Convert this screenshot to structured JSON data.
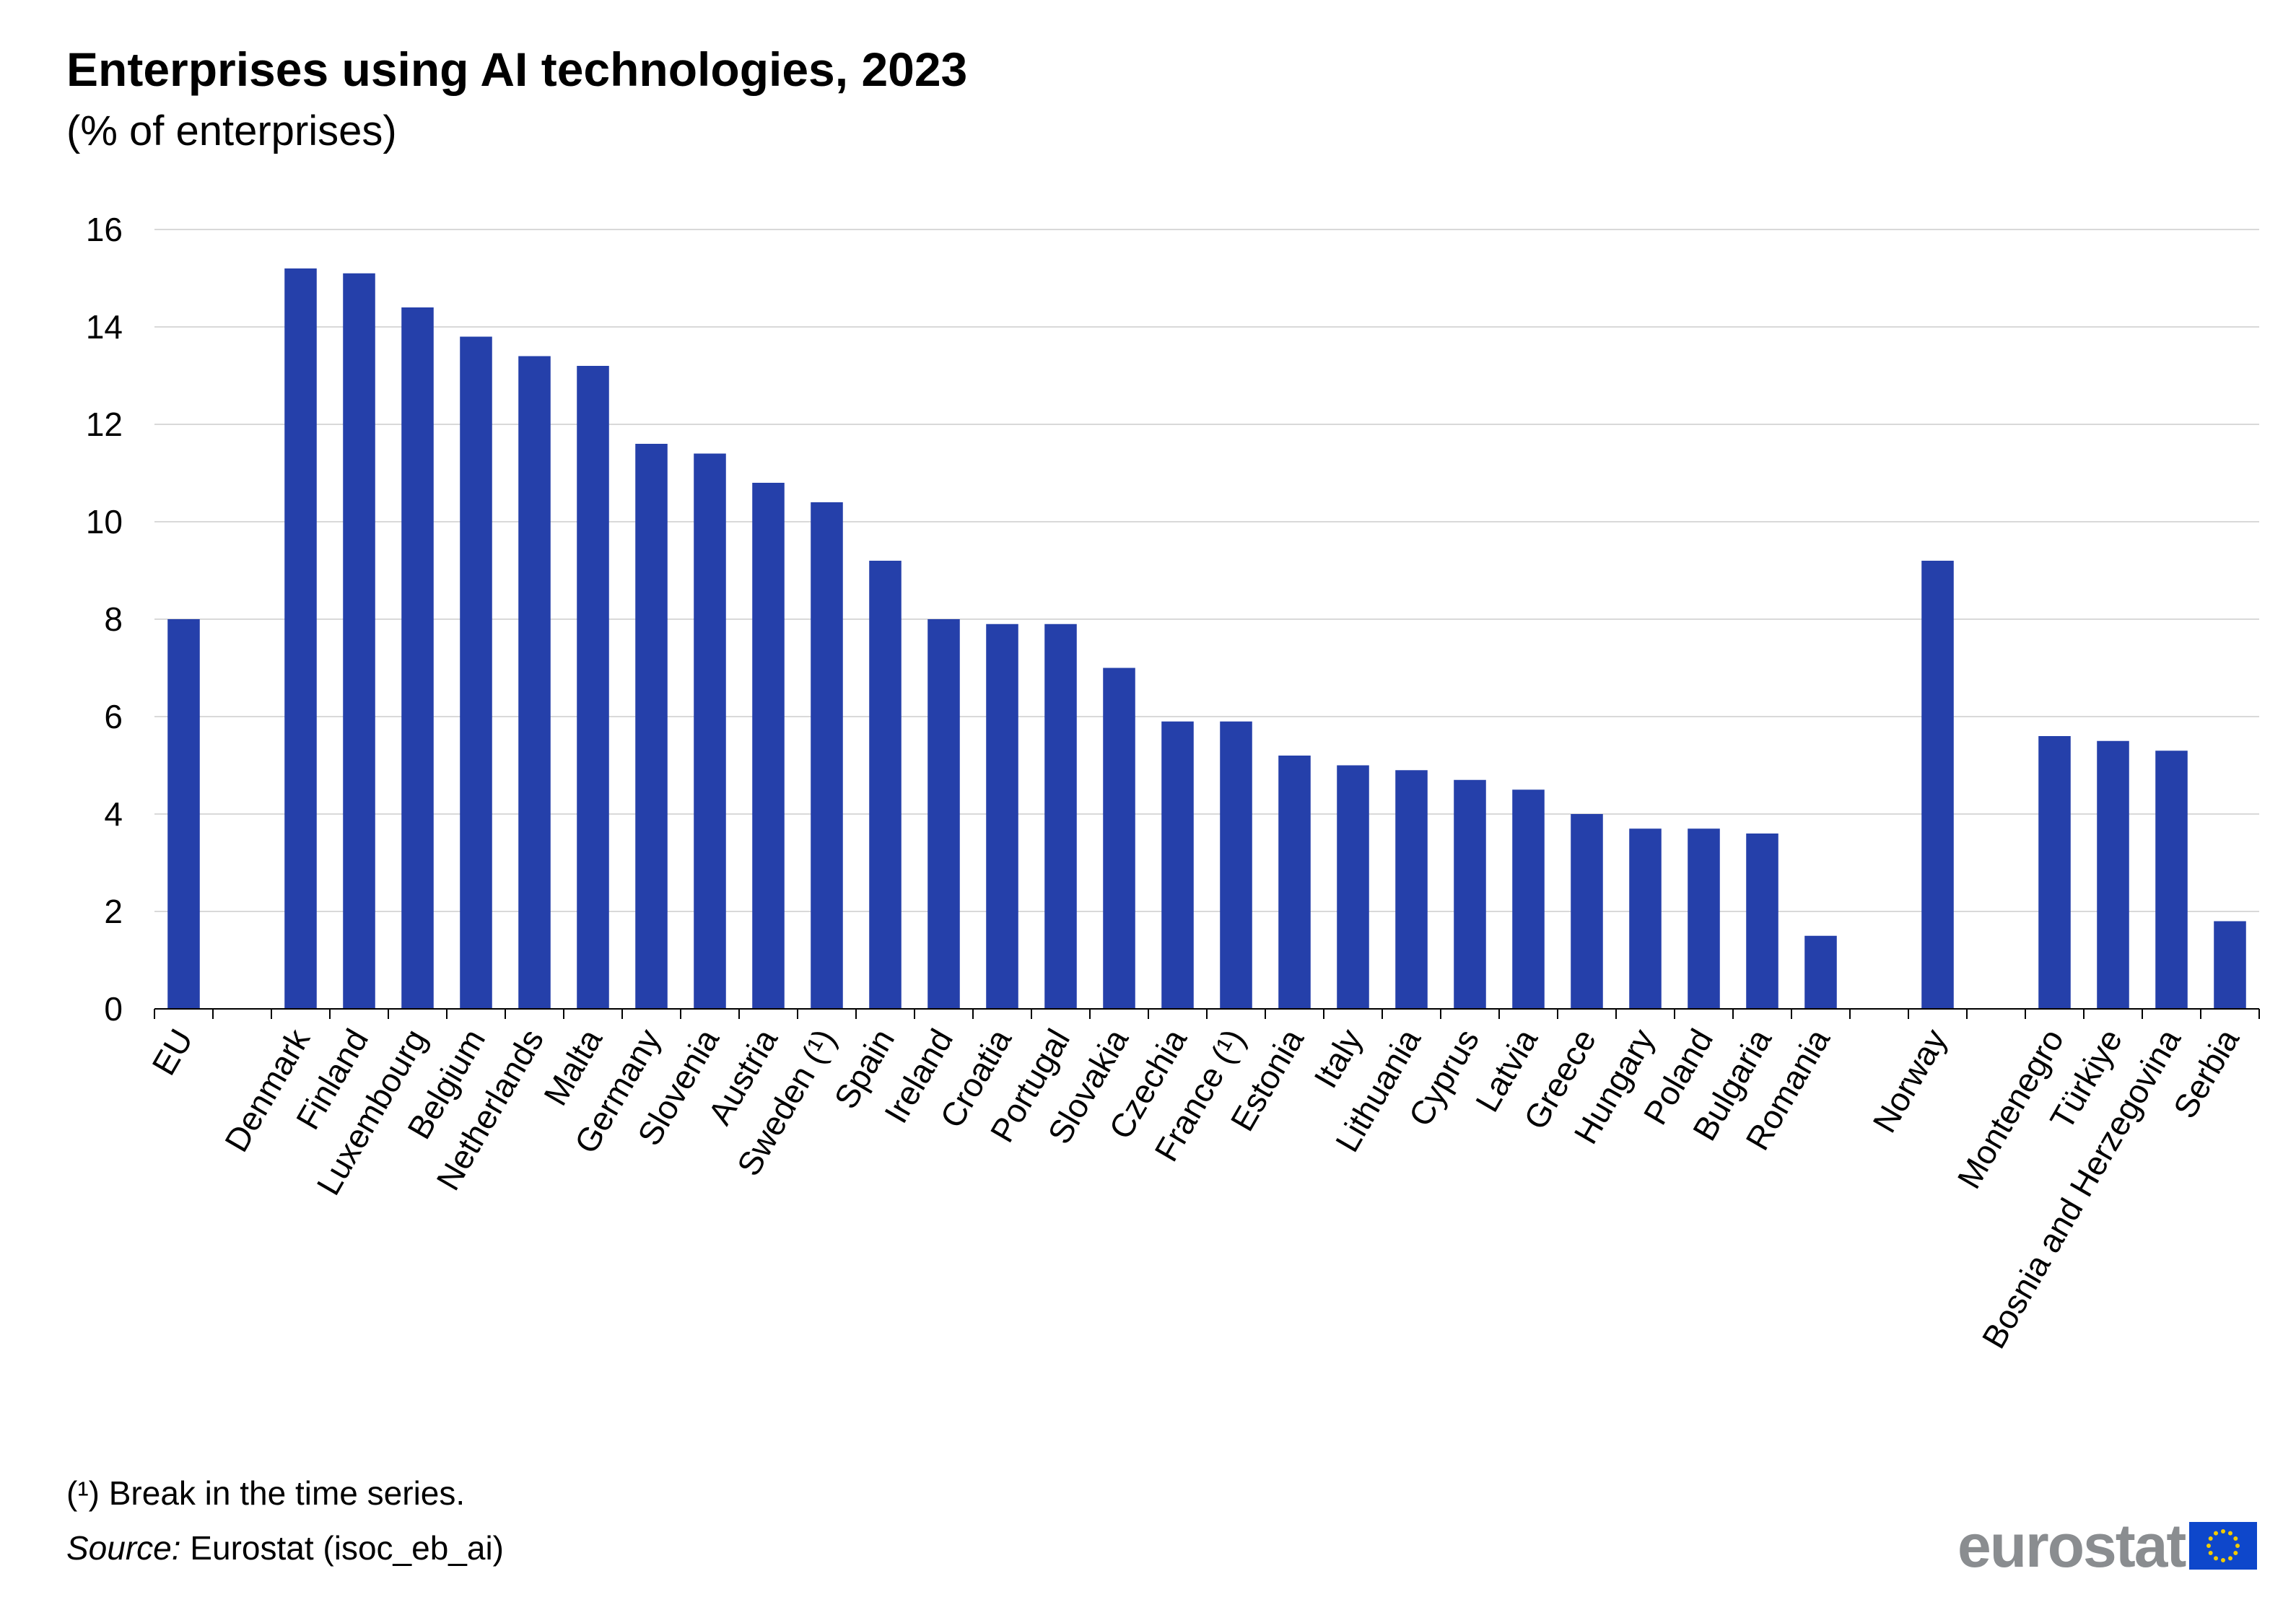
{
  "chart_data": {
    "type": "bar",
    "title": "Enterprises using AI technologies, 2023",
    "subtitle": "(% of enterprises)",
    "xlabel": "",
    "ylabel": "",
    "ylim": [
      0,
      16
    ],
    "yticks": [
      "0",
      "2",
      "4",
      "6",
      "8",
      "10",
      "12",
      "14",
      "16"
    ],
    "grid": true,
    "color": "#2540aa",
    "slots": [
      {
        "label": "EU",
        "value": 8.0
      },
      null,
      {
        "label": "Denmark",
        "value": 15.2
      },
      {
        "label": "Finland",
        "value": 15.1
      },
      {
        "label": "Luxembourg",
        "value": 14.4
      },
      {
        "label": "Belgium",
        "value": 13.8
      },
      {
        "label": "Netherlands",
        "value": 13.4
      },
      {
        "label": "Malta",
        "value": 13.2
      },
      {
        "label": "Germany",
        "value": 11.6
      },
      {
        "label": "Slovenia",
        "value": 11.4
      },
      {
        "label": "Austria",
        "value": 10.8
      },
      {
        "label": "Sweden (¹)",
        "value": 10.4
      },
      {
        "label": "Spain",
        "value": 9.2
      },
      {
        "label": "Ireland",
        "value": 8.0
      },
      {
        "label": "Croatia",
        "value": 7.9
      },
      {
        "label": "Portugal",
        "value": 7.9
      },
      {
        "label": "Slovakia",
        "value": 7.0
      },
      {
        "label": "Czechia",
        "value": 5.9
      },
      {
        "label": "France (¹)",
        "value": 5.9
      },
      {
        "label": "Estonia",
        "value": 5.2
      },
      {
        "label": "Italy",
        "value": 5.0
      },
      {
        "label": "Lithuania",
        "value": 4.9
      },
      {
        "label": "Cyprus",
        "value": 4.7
      },
      {
        "label": "Latvia",
        "value": 4.5
      },
      {
        "label": "Greece",
        "value": 4.0
      },
      {
        "label": "Hungary",
        "value": 3.7
      },
      {
        "label": "Poland",
        "value": 3.7
      },
      {
        "label": "Bulgaria",
        "value": 3.6
      },
      {
        "label": "Romania",
        "value": 1.5
      },
      null,
      {
        "label": "Norway",
        "value": 9.2
      },
      null,
      {
        "label": "Montenegro",
        "value": 5.6
      },
      {
        "label": "Türkiye",
        "value": 5.5
      },
      {
        "label": "Bosnia and Herzegovina",
        "value": 5.3
      },
      {
        "label": "Serbia",
        "value": 1.8
      }
    ]
  },
  "footnote": "(¹) Break in the time series.",
  "source": {
    "label": "Source:",
    "text": " Eurostat (isoc_eb_ai)"
  },
  "logo": {
    "text": "eurostat",
    "flag_color": "#0e47cb",
    "star_color": "#f2cc00"
  }
}
